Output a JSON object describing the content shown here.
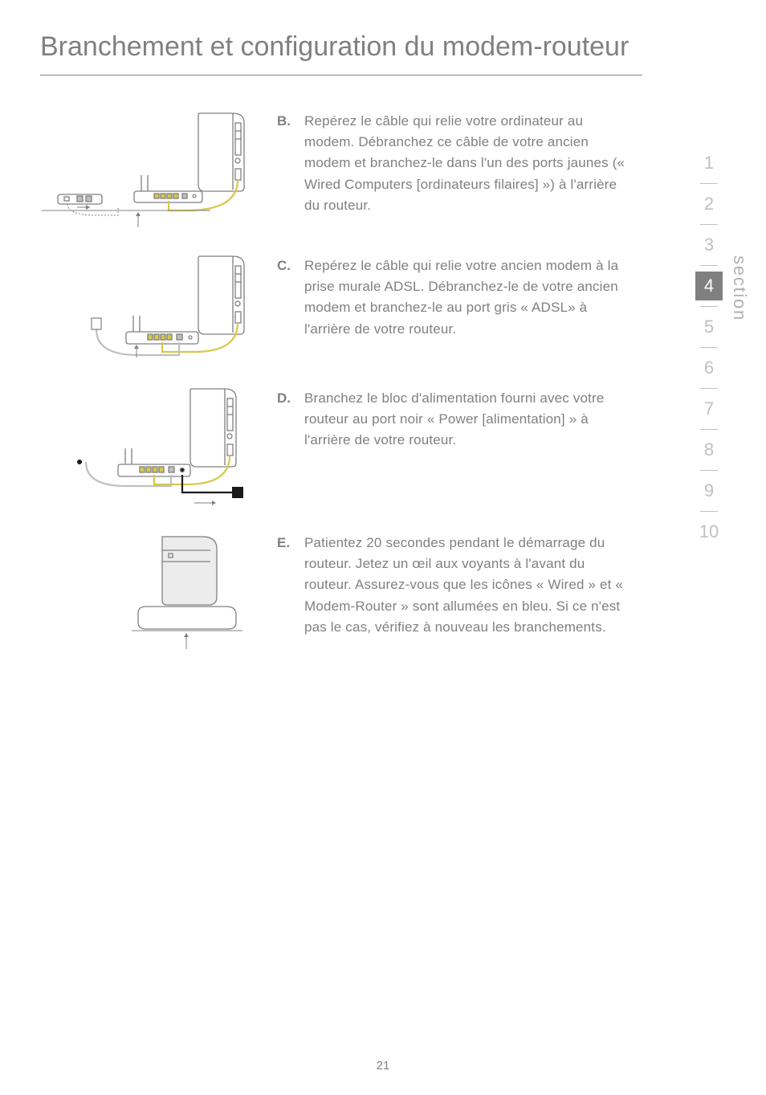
{
  "title": "Branchement et configuration du modem-routeur",
  "steps": {
    "b": {
      "letter": "B.",
      "text": "Repérez le câble qui relie votre ordinateur au modem. Débranchez ce câble de votre ancien modem et branchez-le dans l'un des ports jaunes (« Wired Computers [ordinateurs filaires] ») à l'arrière du routeur."
    },
    "c": {
      "letter": "C.",
      "text": "Repérez le câble qui relie votre ancien modem à la prise murale ADSL. Débranchez-le de votre ancien modem et branchez-le au port gris « ADSL» à l'arrière de votre routeur."
    },
    "d": {
      "letter": "D.",
      "text": "Branchez le bloc d'alimentation fourni avec votre routeur au port noir « Power [alimentation] » à l'arrière de votre routeur."
    },
    "e": {
      "letter": "E.",
      "text": "Patientez 20 secondes pendant le démarrage du routeur. Jetez un œil aux voyants à l'avant du routeur. Assurez-vous que les icônes « Wired » et « Modem-Router » sont allumées en bleu. Si ce n'est pas le cas, vérifiez à nouveau les branchements."
    }
  },
  "nav": {
    "items": [
      "1",
      "2",
      "3",
      "4",
      "5",
      "6",
      "7",
      "8",
      "9",
      "10"
    ],
    "active_index": 3,
    "label": "section"
  },
  "page_number": "21",
  "colors": {
    "text": "#808080",
    "nav_inactive": "#c0c0c0",
    "nav_active_bg": "#808080",
    "nav_active_fg": "#ffffff",
    "illus_stroke": "#808080",
    "illus_yellow": "#d8c848",
    "illus_gray": "#bfbfbf",
    "illus_black": "#1a1a1a"
  }
}
